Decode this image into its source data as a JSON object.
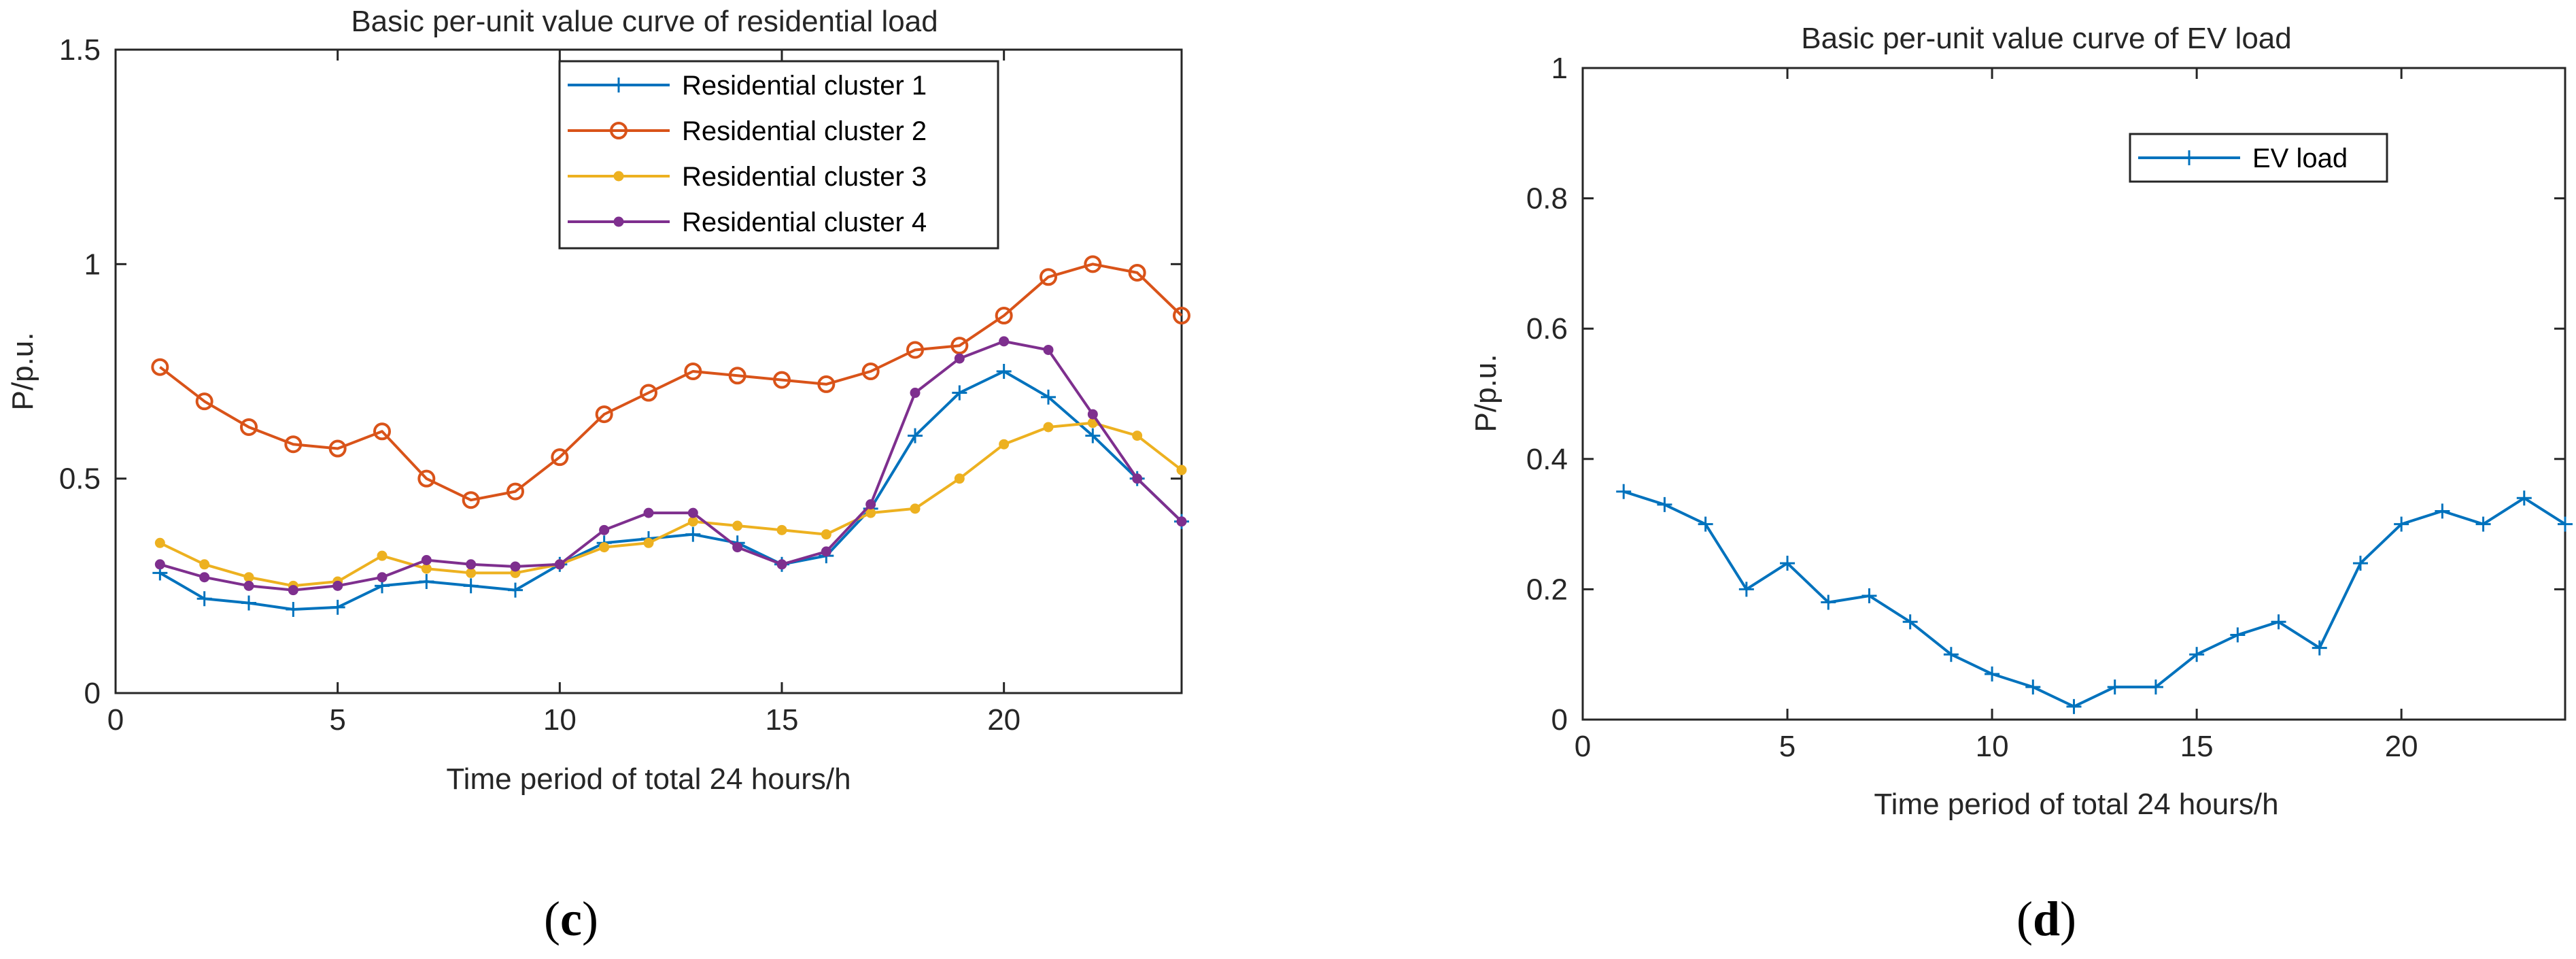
{
  "panels": [
    {
      "label": "c",
      "chart_data": {
        "type": "line",
        "title": "Basic per-unit value curve of residential load",
        "xlabel": "Time period of total 24 hours/h",
        "ylabel": "P/p.u.",
        "xlim": [
          0,
          24
        ],
        "ylim": [
          0,
          1.5
        ],
        "xticks": [
          0,
          5,
          10,
          15,
          20
        ],
        "yticks": [
          0,
          0.5,
          1,
          1.5
        ],
        "xtick_labels": [
          "0",
          "5",
          "10",
          "15",
          "20"
        ],
        "ytick_labels": [
          "0",
          "0.5",
          "1",
          "1.5"
        ],
        "legend_position": "top-right",
        "x": [
          1,
          2,
          3,
          4,
          5,
          6,
          7,
          8,
          9,
          10,
          11,
          12,
          13,
          14,
          15,
          16,
          17,
          18,
          19,
          20,
          21,
          22,
          23,
          24
        ],
        "series": [
          {
            "name": "Residential cluster 1",
            "color": "#0072BD",
            "marker": "plus",
            "values": [
              0.28,
              0.22,
              0.21,
              0.195,
              0.2,
              0.25,
              0.26,
              0.25,
              0.24,
              0.3,
              0.35,
              0.36,
              0.37,
              0.35,
              0.3,
              0.32,
              0.43,
              0.6,
              0.7,
              0.75,
              0.69,
              0.6,
              0.5,
              0.4
            ]
          },
          {
            "name": "Residential cluster 2",
            "color": "#D95319",
            "marker": "circle",
            "values": [
              0.76,
              0.68,
              0.62,
              0.58,
              0.57,
              0.61,
              0.5,
              0.45,
              0.47,
              0.55,
              0.65,
              0.7,
              0.75,
              0.74,
              0.73,
              0.72,
              0.75,
              0.8,
              0.81,
              0.88,
              0.97,
              1.0,
              0.98,
              0.88
            ]
          },
          {
            "name": "Residential cluster 3",
            "color": "#EDB120",
            "marker": "dot",
            "values": [
              0.35,
              0.3,
              0.27,
              0.25,
              0.26,
              0.32,
              0.29,
              0.28,
              0.28,
              0.3,
              0.34,
              0.35,
              0.4,
              0.39,
              0.38,
              0.37,
              0.42,
              0.43,
              0.5,
              0.58,
              0.62,
              0.63,
              0.6,
              0.52
            ]
          },
          {
            "name": "Residential cluster 4",
            "color": "#7E2F8E",
            "marker": "dot",
            "values": [
              0.3,
              0.27,
              0.25,
              0.24,
              0.25,
              0.27,
              0.31,
              0.3,
              0.295,
              0.3,
              0.38,
              0.42,
              0.42,
              0.34,
              0.3,
              0.33,
              0.44,
              0.7,
              0.78,
              0.82,
              0.8,
              0.65,
              0.5,
              0.4
            ]
          }
        ]
      }
    },
    {
      "label": "d",
      "chart_data": {
        "type": "line",
        "title": "Basic per-unit value curve of EV load",
        "xlabel": "Time period of total 24 hours/h",
        "ylabel": "P/p.u.",
        "xlim": [
          0,
          24
        ],
        "ylim": [
          0,
          1
        ],
        "xticks": [
          0,
          5,
          10,
          15,
          20
        ],
        "yticks": [
          0,
          0.2,
          0.4,
          0.6,
          0.8,
          1
        ],
        "xtick_labels": [
          "0",
          "5",
          "10",
          "15",
          "20"
        ],
        "ytick_labels": [
          "0",
          "0.2",
          "0.4",
          "0.6",
          "0.8",
          "1"
        ],
        "legend_position": "top-right",
        "x": [
          1,
          2,
          3,
          4,
          5,
          6,
          7,
          8,
          9,
          10,
          11,
          12,
          13,
          14,
          15,
          16,
          17,
          18,
          19,
          20,
          21,
          22,
          23,
          24
        ],
        "series": [
          {
            "name": "EV load",
            "color": "#0072BD",
            "marker": "plus",
            "values": [
              0.35,
              0.33,
              0.3,
              0.2,
              0.24,
              0.18,
              0.19,
              0.15,
              0.1,
              0.07,
              0.05,
              0.02,
              0.05,
              0.05,
              0.1,
              0.13,
              0.15,
              0.11,
              0.24,
              0.3,
              0.32,
              0.3,
              0.34,
              0.3
            ]
          }
        ]
      }
    }
  ]
}
